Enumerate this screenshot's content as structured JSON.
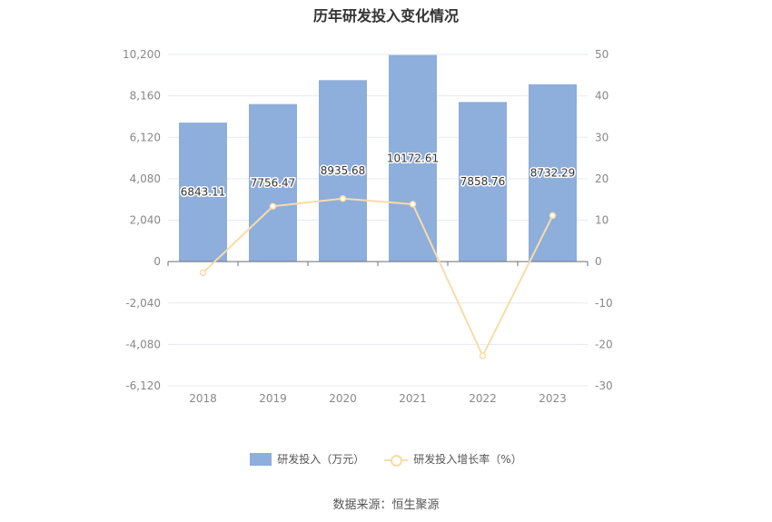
{
  "title": "历年研发投入变化情况",
  "source": "数据来源：恒生聚源",
  "legend": {
    "bar_label": "研发投入（万元）",
    "line_label": "研发投入增长率（%）"
  },
  "colors": {
    "bar": "#8eaedb",
    "line": "#f8dca9",
    "grid": "#e6e9f0",
    "axis_text": "#888888"
  },
  "chart_data": {
    "type": "bar",
    "categories": [
      "2018",
      "2019",
      "2020",
      "2021",
      "2022",
      "2023"
    ],
    "series": [
      {
        "name": "研发投入（万元）",
        "type": "bar",
        "axis": "left",
        "values": [
          6843.11,
          7756.47,
          8935.68,
          10172.61,
          7858.76,
          8732.29
        ],
        "labels": [
          "6843.11",
          "7756.47",
          "8935.68",
          "10172.61",
          "7858.76",
          "8732.29"
        ]
      },
      {
        "name": "研发投入增长率（%）",
        "type": "line",
        "axis": "right",
        "values": [
          -2.7,
          13.35,
          15.2,
          13.84,
          -22.75,
          11.11
        ]
      }
    ],
    "y_left": {
      "ylim": [
        -6120,
        10200
      ],
      "ticks": [
        10200,
        8160,
        6120,
        4080,
        2040,
        0,
        -2040,
        -4080,
        -6120
      ],
      "tick_labels": [
        "10,200",
        "8,160",
        "6,120",
        "4,080",
        "2,040",
        "0",
        "-2,040",
        "-4,080",
        "-6,120"
      ]
    },
    "y_right": {
      "ylim": [
        -30,
        50
      ],
      "ticks": [
        50,
        40,
        30,
        20,
        10,
        0,
        -10,
        -20,
        -30
      ],
      "tick_labels": [
        "50",
        "40",
        "30",
        "20",
        "10",
        "0",
        "-10",
        "-20",
        "-30"
      ]
    },
    "grid": true,
    "legend_position": "bottom"
  }
}
